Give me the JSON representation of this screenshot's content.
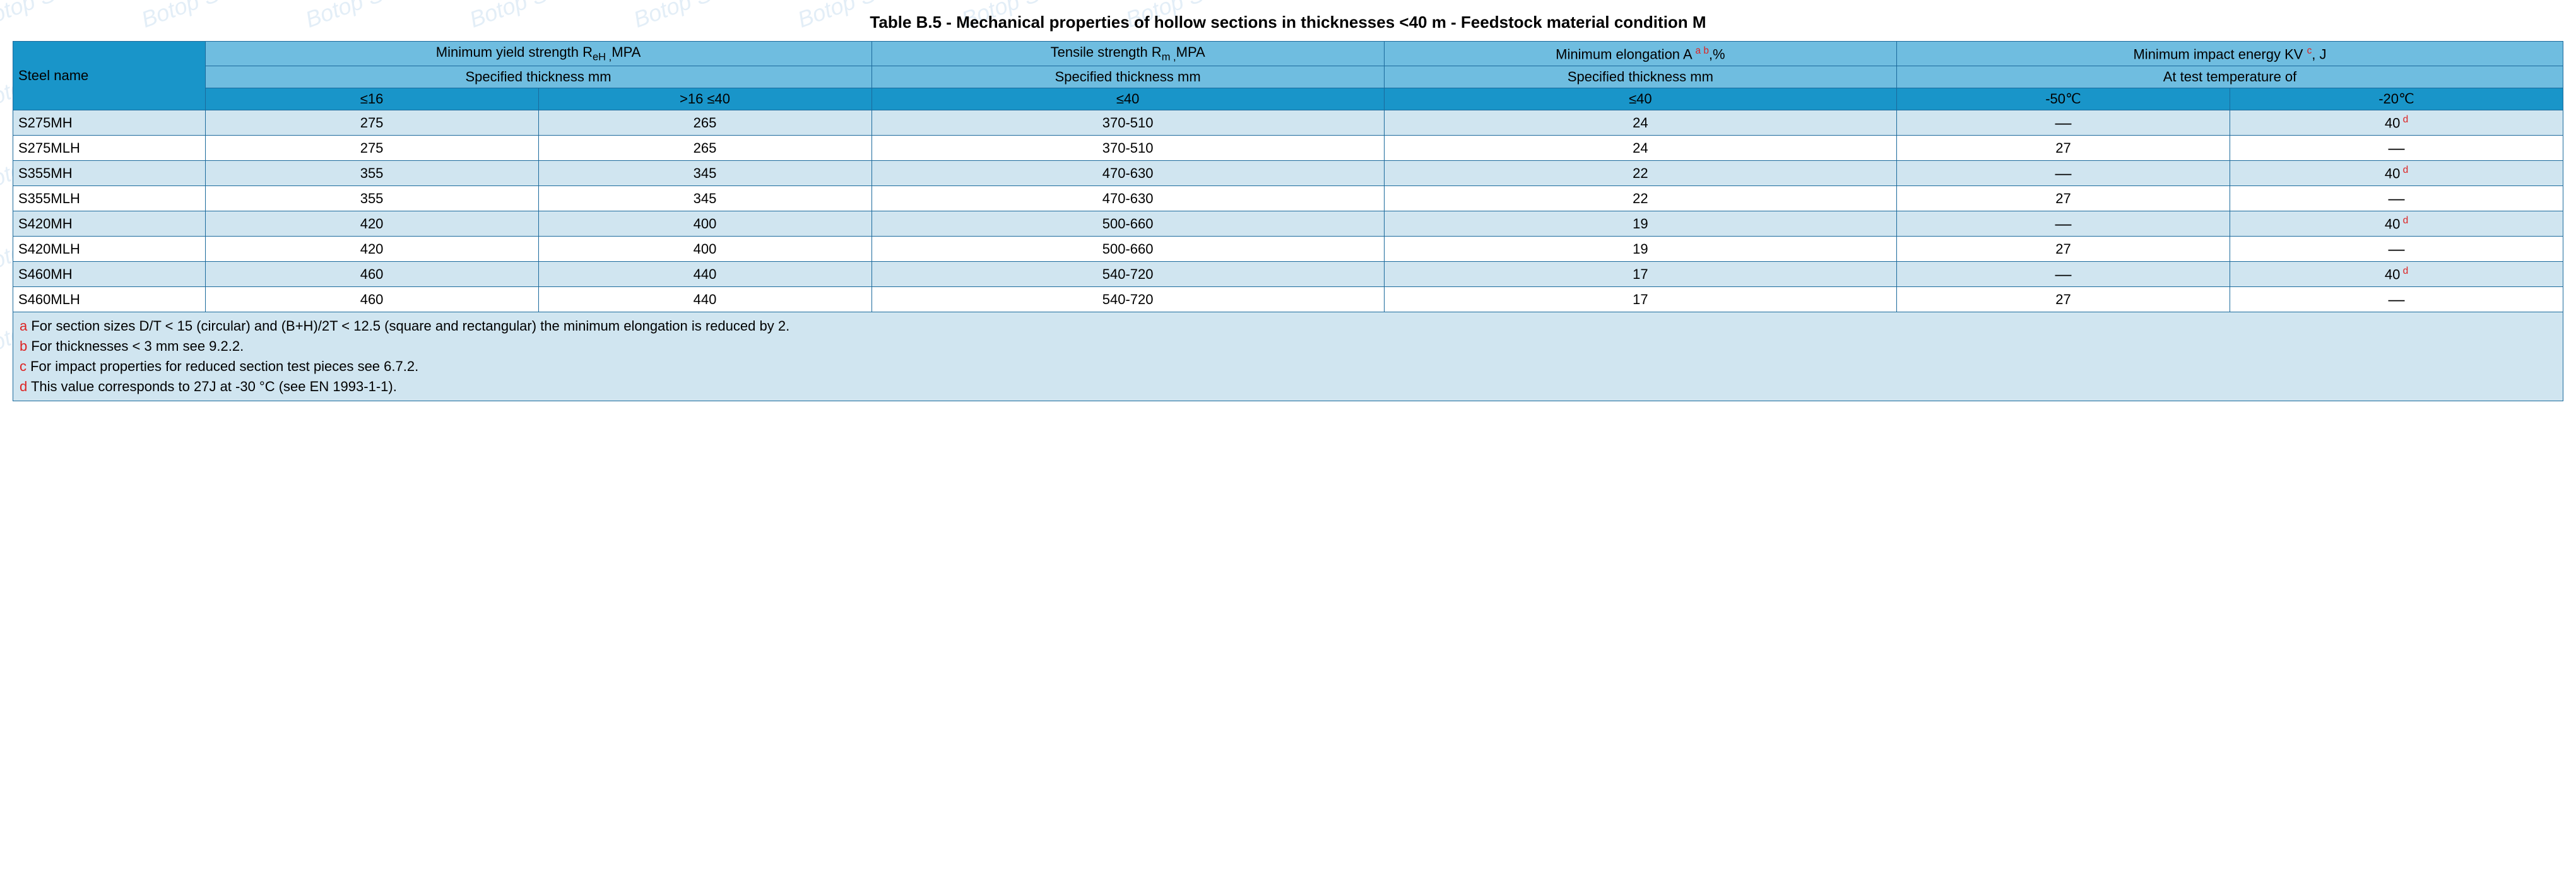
{
  "title": "Table B.5 - Mechanical properties of hollow sections in thicknesses <40 m - Feedstock material condition M",
  "watermark": "Botop Steel",
  "headers": {
    "steel_name": "Steel name",
    "yield_group": "Minimum yield strength R",
    "yield_sub": "eH ,",
    "yield_unit": "MPA",
    "tensile_group": "Tensile strength R",
    "tensile_sub": "m ,",
    "tensile_unit": "MPA",
    "elong_group": "Minimum elongation A ",
    "elong_unit": ",%",
    "impact_group": "Minimum impact energy KV ",
    "impact_unit": ", J",
    "spec_thick": "Specified thickness mm",
    "at_test_temp": "At test temperature of",
    "y_le16": "≤16",
    "y_16_40": ">16 ≤40",
    "t_le40": "≤40",
    "e_le40": "≤40",
    "temp_50": "-50℃",
    "temp_20": "-20℃",
    "sup_ab": "a b",
    "sup_c": "c"
  },
  "rows": [
    {
      "name": "S275MH",
      "y16": "275",
      "y40": "265",
      "ten": "370-510",
      "elo": "24",
      "t50": "—",
      "t20": "40",
      "t20_sup": "d"
    },
    {
      "name": "S275MLH",
      "y16": "275",
      "y40": "265",
      "ten": "370-510",
      "elo": "24",
      "t50": "27",
      "t20": "—",
      "t20_sup": ""
    },
    {
      "name": "S355MH",
      "y16": "355",
      "y40": "345",
      "ten": "470-630",
      "elo": "22",
      "t50": "—",
      "t20": "40",
      "t20_sup": "d"
    },
    {
      "name": "S355MLH",
      "y16": "355",
      "y40": "345",
      "ten": "470-630",
      "elo": "22",
      "t50": "27",
      "t20": "—",
      "t20_sup": ""
    },
    {
      "name": "S420MH",
      "y16": "420",
      "y40": "400",
      "ten": "500-660",
      "elo": "19",
      "t50": "—",
      "t20": "40",
      "t20_sup": "d"
    },
    {
      "name": "S420MLH",
      "y16": "420",
      "y40": "400",
      "ten": "500-660",
      "elo": "19",
      "t50": "27",
      "t20": "—",
      "t20_sup": ""
    },
    {
      "name": "S460MH",
      "y16": "460",
      "y40": "440",
      "ten": "540-720",
      "elo": "17",
      "t50": "—",
      "t20": "40",
      "t20_sup": "d"
    },
    {
      "name": "S460MLH",
      "y16": "460",
      "y40": "440",
      "ten": "540-720",
      "elo": "17",
      "t50": "27",
      "t20": "—",
      "t20_sup": ""
    }
  ],
  "footnotes": {
    "a_mark": "a",
    "a": " For section sizes D/T < 15 (circular) and (B+H)/2T < 12.5 (square and rectangular) the minimum elongation is reduced by 2.",
    "b_mark": "b",
    "b": " For thicknesses < 3 mm see 9.2.2.",
    "c_mark": "c",
    "c": " For impact properties for reduced section test pieces see 6.7.2.",
    "d_mark": "d",
    "d": " This value corresponds to 27J at -30 °C (see EN 1993-1-1)."
  },
  "colors": {
    "header_dark": "#1995c9",
    "header_light": "#6fbde0",
    "row_even": "#d0e5f0",
    "row_odd": "#ffffff",
    "border": "#1b6a9c",
    "sup": "#d22"
  }
}
